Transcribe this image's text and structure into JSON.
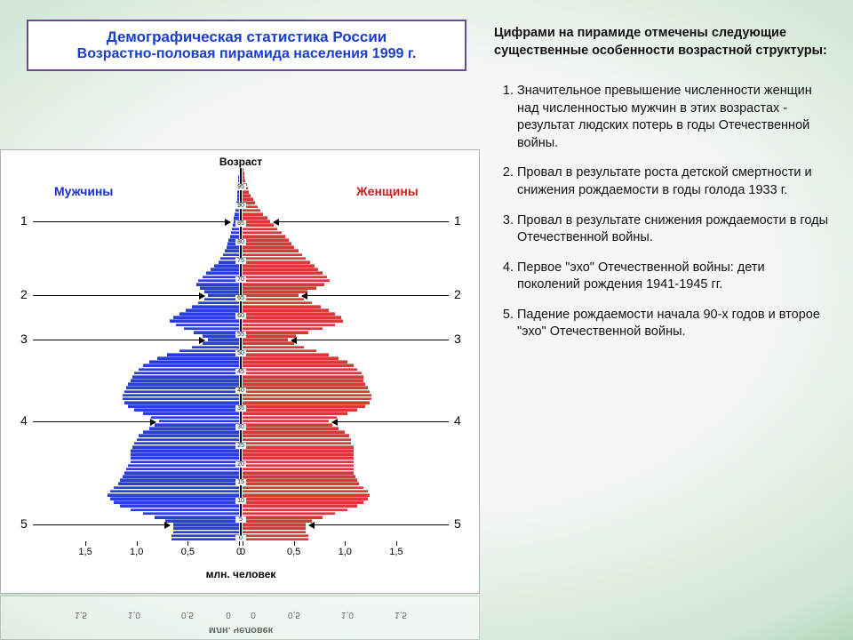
{
  "title": {
    "line1": "Демографическая статистика России",
    "line2": "Возрастно-половая пирамида населения 1999 г.",
    "text_color": "#1a3ecf",
    "border_color": "#6b4a9a",
    "bg": "#ffffff",
    "line1_fontsize": 17,
    "line2_fontsize": 16
  },
  "right": {
    "intro": "Цифрами на пирамиде отмечены следующие существенные особенности возрастной структуры:",
    "items": [
      "Значительное превышение численности женщин над численностью мужчин в этих возрастах - результат людских потерь в годы Отечественной войны.",
      "Провал в результате роста детской смертности и снижения рождаемости в годы голода 1933 г.",
      "Провал в результате снижения рождаемости в годы Отечественной войны.",
      "Первое \"эхо\" Отечественной войны: дети поколений рождения 1941-1945 гг.",
      "Падение рождаемости начала 90-х годов и второе \"эхо\" Отечественной войны."
    ],
    "fontsize": 14.5,
    "color": "#111111"
  },
  "pyramid": {
    "type": "population_pyramid",
    "axis_title": "Возраст",
    "male_label": "Мужчины",
    "female_label": "Женщины",
    "male_color": "#2a3fd8",
    "female_color": "#d83a3a",
    "male_label_color": "#1a2fd0",
    "female_label_color": "#d01a1a",
    "background_color": "#ffffff",
    "x_unit_label": "млн. человек",
    "x_ticks": [
      1.5,
      1.0,
      0.5,
      0,
      0,
      0.5,
      1.0,
      1.5
    ],
    "x_tick_labels_left": [
      "1,5",
      "1,0",
      "0,5",
      "0"
    ],
    "x_tick_labels_right": [
      "0",
      "0,5",
      "1,0",
      "1,5"
    ],
    "xlim": 1.7,
    "age_tick_labels": [
      "95",
      "90",
      "85",
      "80",
      "75",
      "70",
      "65",
      "60",
      "55",
      "50",
      "45",
      "40",
      "35",
      "30",
      "25",
      "20",
      "15",
      "10",
      "5",
      "0"
    ],
    "age_max": 100,
    "annotations_left": [
      {
        "n": "1",
        "age": 86
      },
      {
        "n": "2",
        "age": 66
      },
      {
        "n": "3",
        "age": 54
      },
      {
        "n": "4",
        "age": 32
      },
      {
        "n": "5",
        "age": 4
      }
    ],
    "annotations_right": [
      {
        "n": "1",
        "age": 86
      },
      {
        "n": "2",
        "age": 66
      },
      {
        "n": "3",
        "age": 54
      },
      {
        "n": "4",
        "age": 32
      },
      {
        "n": "5",
        "age": 4
      }
    ],
    "rows": [
      {
        "age": 100,
        "m": 0.0,
        "f": 0.01
      },
      {
        "age": 99,
        "m": 0.0,
        "f": 0.015
      },
      {
        "age": 98,
        "m": 0.005,
        "f": 0.02
      },
      {
        "age": 97,
        "m": 0.005,
        "f": 0.03
      },
      {
        "age": 96,
        "m": 0.01,
        "f": 0.04
      },
      {
        "age": 95,
        "m": 0.012,
        "f": 0.05
      },
      {
        "age": 94,
        "m": 0.015,
        "f": 0.06
      },
      {
        "age": 93,
        "m": 0.018,
        "f": 0.08
      },
      {
        "age": 92,
        "m": 0.02,
        "f": 0.1
      },
      {
        "age": 91,
        "m": 0.025,
        "f": 0.12
      },
      {
        "age": 90,
        "m": 0.03,
        "f": 0.15
      },
      {
        "age": 89,
        "m": 0.035,
        "f": 0.17
      },
      {
        "age": 88,
        "m": 0.04,
        "f": 0.2
      },
      {
        "age": 87,
        "m": 0.05,
        "f": 0.24
      },
      {
        "age": 86,
        "m": 0.055,
        "f": 0.27
      },
      {
        "age": 85,
        "m": 0.06,
        "f": 0.3
      },
      {
        "age": 84,
        "m": 0.07,
        "f": 0.34
      },
      {
        "age": 83,
        "m": 0.08,
        "f": 0.38
      },
      {
        "age": 82,
        "m": 0.09,
        "f": 0.42
      },
      {
        "age": 81,
        "m": 0.1,
        "f": 0.45
      },
      {
        "age": 80,
        "m": 0.11,
        "f": 0.48
      },
      {
        "age": 79,
        "m": 0.12,
        "f": 0.5
      },
      {
        "age": 78,
        "m": 0.14,
        "f": 0.55
      },
      {
        "age": 77,
        "m": 0.16,
        "f": 0.58
      },
      {
        "age": 76,
        "m": 0.18,
        "f": 0.62
      },
      {
        "age": 75,
        "m": 0.2,
        "f": 0.66
      },
      {
        "age": 74,
        "m": 0.24,
        "f": 0.7
      },
      {
        "age": 73,
        "m": 0.28,
        "f": 0.74
      },
      {
        "age": 72,
        "m": 0.32,
        "f": 0.78
      },
      {
        "age": 71,
        "m": 0.36,
        "f": 0.82
      },
      {
        "age": 70,
        "m": 0.4,
        "f": 0.85
      },
      {
        "age": 69,
        "m": 0.42,
        "f": 0.8
      },
      {
        "age": 68,
        "m": 0.38,
        "f": 0.72
      },
      {
        "age": 67,
        "m": 0.34,
        "f": 0.63
      },
      {
        "age": 66,
        "m": 0.3,
        "f": 0.55
      },
      {
        "age": 65,
        "m": 0.34,
        "f": 0.6
      },
      {
        "age": 64,
        "m": 0.4,
        "f": 0.68
      },
      {
        "age": 63,
        "m": 0.46,
        "f": 0.76
      },
      {
        "age": 62,
        "m": 0.52,
        "f": 0.84
      },
      {
        "age": 61,
        "m": 0.58,
        "f": 0.9
      },
      {
        "age": 60,
        "m": 0.64,
        "f": 0.96
      },
      {
        "age": 59,
        "m": 0.68,
        "f": 0.98
      },
      {
        "age": 58,
        "m": 0.62,
        "f": 0.9
      },
      {
        "age": 57,
        "m": 0.54,
        "f": 0.78
      },
      {
        "age": 56,
        "m": 0.44,
        "f": 0.64
      },
      {
        "age": 55,
        "m": 0.36,
        "f": 0.52
      },
      {
        "age": 54,
        "m": 0.3,
        "f": 0.44
      },
      {
        "age": 53,
        "m": 0.36,
        "f": 0.5
      },
      {
        "age": 52,
        "m": 0.46,
        "f": 0.6
      },
      {
        "age": 51,
        "m": 0.58,
        "f": 0.72
      },
      {
        "age": 50,
        "m": 0.7,
        "f": 0.84
      },
      {
        "age": 49,
        "m": 0.8,
        "f": 0.94
      },
      {
        "age": 48,
        "m": 0.88,
        "f": 1.02
      },
      {
        "age": 47,
        "m": 0.94,
        "f": 1.08
      },
      {
        "age": 46,
        "m": 0.98,
        "f": 1.12
      },
      {
        "age": 45,
        "m": 1.02,
        "f": 1.16
      },
      {
        "age": 44,
        "m": 1.04,
        "f": 1.18
      },
      {
        "age": 43,
        "m": 1.06,
        "f": 1.18
      },
      {
        "age": 42,
        "m": 1.08,
        "f": 1.2
      },
      {
        "age": 41,
        "m": 1.1,
        "f": 1.22
      },
      {
        "age": 40,
        "m": 1.12,
        "f": 1.24
      },
      {
        "age": 39,
        "m": 1.14,
        "f": 1.26
      },
      {
        "age": 38,
        "m": 1.14,
        "f": 1.26
      },
      {
        "age": 37,
        "m": 1.12,
        "f": 1.24
      },
      {
        "age": 36,
        "m": 1.08,
        "f": 1.2
      },
      {
        "age": 35,
        "m": 1.02,
        "f": 1.12
      },
      {
        "age": 34,
        "m": 0.94,
        "f": 1.02
      },
      {
        "age": 33,
        "m": 0.86,
        "f": 0.92
      },
      {
        "age": 32,
        "m": 0.78,
        "f": 0.84
      },
      {
        "age": 31,
        "m": 0.82,
        "f": 0.88
      },
      {
        "age": 30,
        "m": 0.88,
        "f": 0.94
      },
      {
        "age": 29,
        "m": 0.94,
        "f": 1.0
      },
      {
        "age": 28,
        "m": 0.98,
        "f": 1.04
      },
      {
        "age": 27,
        "m": 1.0,
        "f": 1.06
      },
      {
        "age": 26,
        "m": 1.02,
        "f": 1.06
      },
      {
        "age": 25,
        "m": 1.04,
        "f": 1.08
      },
      {
        "age": 24,
        "m": 1.06,
        "f": 1.08
      },
      {
        "age": 23,
        "m": 1.06,
        "f": 1.08
      },
      {
        "age": 22,
        "m": 1.06,
        "f": 1.08
      },
      {
        "age": 21,
        "m": 1.06,
        "f": 1.08
      },
      {
        "age": 20,
        "m": 1.08,
        "f": 1.08
      },
      {
        "age": 19,
        "m": 1.1,
        "f": 1.08
      },
      {
        "age": 18,
        "m": 1.12,
        "f": 1.08
      },
      {
        "age": 17,
        "m": 1.14,
        "f": 1.1
      },
      {
        "age": 16,
        "m": 1.16,
        "f": 1.12
      },
      {
        "age": 15,
        "m": 1.18,
        "f": 1.14
      },
      {
        "age": 14,
        "m": 1.22,
        "f": 1.18
      },
      {
        "age": 13,
        "m": 1.26,
        "f": 1.22
      },
      {
        "age": 12,
        "m": 1.28,
        "f": 1.24
      },
      {
        "age": 11,
        "m": 1.26,
        "f": 1.22
      },
      {
        "age": 10,
        "m": 1.22,
        "f": 1.18
      },
      {
        "age": 9,
        "m": 1.16,
        "f": 1.12
      },
      {
        "age": 8,
        "m": 1.06,
        "f": 1.02
      },
      {
        "age": 7,
        "m": 0.94,
        "f": 0.9
      },
      {
        "age": 6,
        "m": 0.82,
        "f": 0.78
      },
      {
        "age": 5,
        "m": 0.72,
        "f": 0.68
      },
      {
        "age": 4,
        "m": 0.64,
        "f": 0.62
      },
      {
        "age": 3,
        "m": 0.64,
        "f": 0.62
      },
      {
        "age": 2,
        "m": 0.64,
        "f": 0.62
      },
      {
        "age": 1,
        "m": 0.66,
        "f": 0.64
      },
      {
        "age": 0,
        "m": 0.66,
        "f": 0.64
      }
    ]
  },
  "bg": {
    "gradient_inner": "#f5f8f5",
    "gradient_mid": "#7db890",
    "gradient_outer": "#0f3a32"
  }
}
